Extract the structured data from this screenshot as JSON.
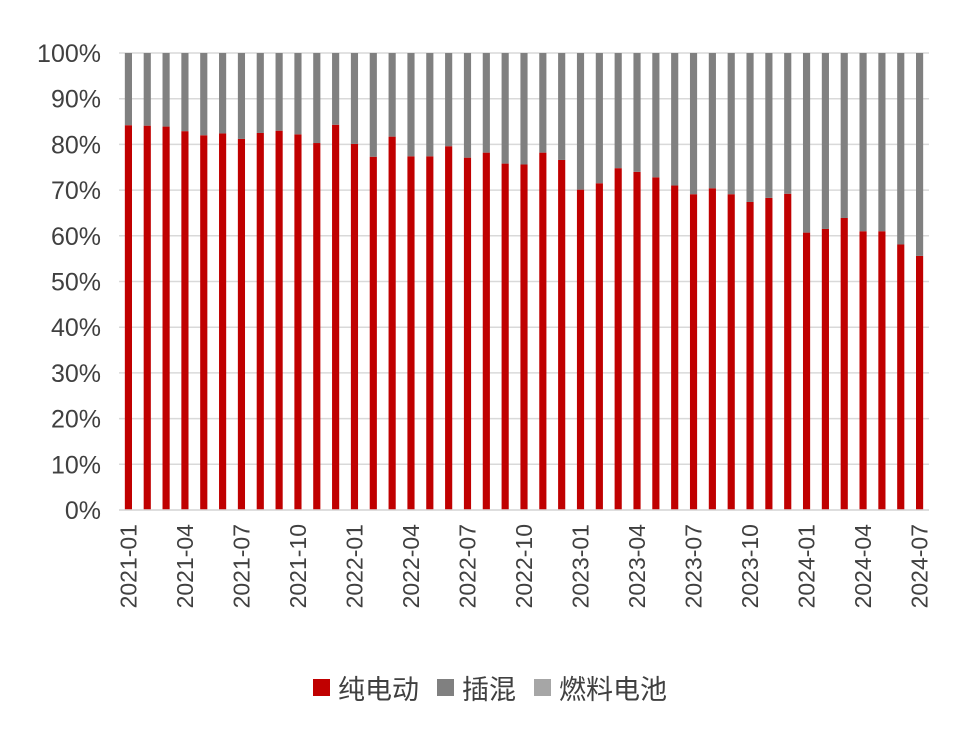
{
  "chart_data": {
    "type": "bar",
    "stacked": true,
    "ylim": [
      0,
      100
    ],
    "yticks": [
      "0%",
      "10%",
      "20%",
      "30%",
      "40%",
      "50%",
      "60%",
      "70%",
      "80%",
      "90%",
      "100%"
    ],
    "grid": "horizontal",
    "legend_position": "bottom",
    "categories": [
      "2021-01",
      "2021-02",
      "2021-03",
      "2021-04",
      "2021-05",
      "2021-06",
      "2021-07",
      "2021-08",
      "2021-09",
      "2021-10",
      "2021-11",
      "2021-12",
      "2022-01",
      "2022-02",
      "2022-03",
      "2022-04",
      "2022-05",
      "2022-06",
      "2022-07",
      "2022-08",
      "2022-09",
      "2022-10",
      "2022-11",
      "2022-12",
      "2023-01",
      "2023-02",
      "2023-03",
      "2023-04",
      "2023-05",
      "2023-06",
      "2023-07",
      "2023-08",
      "2023-09",
      "2023-10",
      "2023-11",
      "2023-12",
      "2024-01",
      "2024-02",
      "2024-03",
      "2024-04",
      "2024-05",
      "2024-06",
      "2024-07"
    ],
    "xtick_labels": [
      "2021-01",
      "2021-04",
      "2021-07",
      "2021-10",
      "2022-01",
      "2022-04",
      "2022-07",
      "2022-10",
      "2023-01",
      "2023-04",
      "2023-07",
      "2023-10",
      "2024-01",
      "2024-04",
      "2024-07"
    ],
    "series": [
      {
        "name": "纯电动",
        "color": "#c00000",
        "values": [
          84.2,
          84.1,
          83.9,
          82.9,
          82.0,
          82.4,
          81.2,
          82.5,
          83.0,
          82.2,
          80.3,
          84.3,
          80.1,
          77.3,
          81.7,
          77.4,
          77.4,
          79.6,
          77.1,
          78.2,
          75.8,
          75.6,
          78.2,
          76.6,
          70.1,
          71.5,
          74.8,
          74.0,
          72.8,
          71.0,
          69.1,
          70.4,
          69.1,
          67.4,
          68.3,
          69.2,
          60.7,
          61.5,
          63.9,
          61.0,
          61.0,
          58.1,
          55.6
        ]
      },
      {
        "name": "插混",
        "color": "#808080",
        "values": [
          15.8,
          15.9,
          16.1,
          17.1,
          18.0,
          17.6,
          18.8,
          17.5,
          17.0,
          17.8,
          19.7,
          15.7,
          19.9,
          22.7,
          18.3,
          22.6,
          22.6,
          20.4,
          22.9,
          21.8,
          24.2,
          24.4,
          21.8,
          23.4,
          29.9,
          28.5,
          25.2,
          26.0,
          27.2,
          29.0,
          30.9,
          29.6,
          30.9,
          32.6,
          31.7,
          30.8,
          39.3,
          38.5,
          36.1,
          39.0,
          39.0,
          41.9,
          44.4
        ]
      },
      {
        "name": "燃料电池",
        "color": "#a6a6a6",
        "values": [
          0,
          0,
          0,
          0,
          0,
          0,
          0,
          0,
          0,
          0,
          0,
          0,
          0,
          0,
          0,
          0,
          0,
          0,
          0,
          0,
          0,
          0,
          0,
          0,
          0,
          0,
          0,
          0,
          0,
          0,
          0,
          0,
          0,
          0,
          0,
          0,
          0,
          0,
          0,
          0,
          0,
          0,
          0
        ]
      }
    ]
  }
}
